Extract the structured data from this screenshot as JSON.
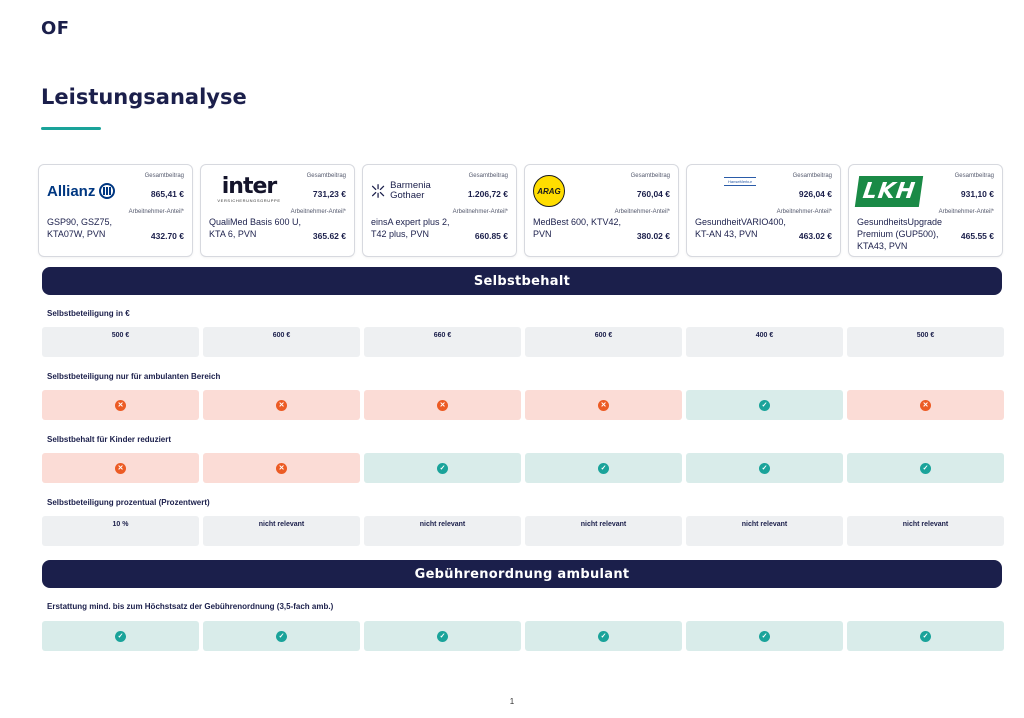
{
  "header": {
    "brand": "OF",
    "title": "Leistungsanalyse"
  },
  "labels": {
    "total": "Gesamtbeitrag",
    "share": "Arbeitnehmer-Anteil*"
  },
  "insurers": [
    {
      "logo": "Allianz",
      "product": "GSP90, GSZ75, KTA07W, PVN",
      "total": "865,41 €",
      "share": "432.70 €"
    },
    {
      "logo": "inter",
      "logo_sub": "VERSICHERUNGSGRUPPE",
      "product": "QualiMed Basis 600 U, KTA 6, PVN",
      "total": "731,23 €",
      "share": "365.62 €"
    },
    {
      "logo": "Barmenia Gothaer",
      "product": "einsA expert plus 2, T42 plus, PVN",
      "total": "1.206,72 €",
      "share": "660.85 €"
    },
    {
      "logo": "ARAG",
      "product": "MedBest 600, KTV42, PVN",
      "total": "760,04 €",
      "share": "380.02 €"
    },
    {
      "logo": "HanseMerkur",
      "product": "GesundheitVARIO400, KT-AN 43, PVN",
      "total": "926,04 €",
      "share": "463.02 €"
    },
    {
      "logo": "LKH",
      "product": "GesundheitsUpgrade Premium (GUP500), KTA43, PVN",
      "total": "931,10 €",
      "share": "465.55 €"
    }
  ],
  "sections": [
    {
      "title": "Selbstbehalt",
      "rows": [
        {
          "label": "Selbstbeteiligung in €",
          "cells": [
            {
              "type": "text",
              "value": "500 €"
            },
            {
              "type": "text",
              "value": "600 €"
            },
            {
              "type": "text",
              "value": "660 €"
            },
            {
              "type": "text",
              "value": "600 €"
            },
            {
              "type": "text",
              "value": "400 €"
            },
            {
              "type": "text",
              "value": "500 €"
            }
          ]
        },
        {
          "label": "Selbstbeteiligung nur für ambulanten Bereich",
          "cells": [
            {
              "type": "no"
            },
            {
              "type": "no"
            },
            {
              "type": "no"
            },
            {
              "type": "no"
            },
            {
              "type": "yes"
            },
            {
              "type": "no"
            }
          ]
        },
        {
          "label": "Selbstbehalt für Kinder reduziert",
          "cells": [
            {
              "type": "no"
            },
            {
              "type": "no"
            },
            {
              "type": "yes"
            },
            {
              "type": "yes"
            },
            {
              "type": "yes"
            },
            {
              "type": "yes"
            }
          ]
        },
        {
          "label": "Selbstbeteiligung prozentual (Prozentwert)",
          "cells": [
            {
              "type": "text",
              "value": "10 %"
            },
            {
              "type": "text",
              "value": "nicht relevant"
            },
            {
              "type": "text",
              "value": "nicht relevant"
            },
            {
              "type": "text",
              "value": "nicht relevant"
            },
            {
              "type": "text",
              "value": "nicht relevant"
            },
            {
              "type": "text",
              "value": "nicht relevant"
            }
          ]
        }
      ]
    },
    {
      "title": "Gebührenordnung ambulant",
      "rows": [
        {
          "label": "Erstattung mind. bis zum Höchstsatz der Gebührenordnung (3,5-fach amb.)",
          "cells": [
            {
              "type": "yes"
            },
            {
              "type": "yes"
            },
            {
              "type": "yes"
            },
            {
              "type": "yes"
            },
            {
              "type": "yes"
            },
            {
              "type": "yes"
            }
          ]
        }
      ]
    }
  ],
  "footer": {
    "page": "1"
  }
}
